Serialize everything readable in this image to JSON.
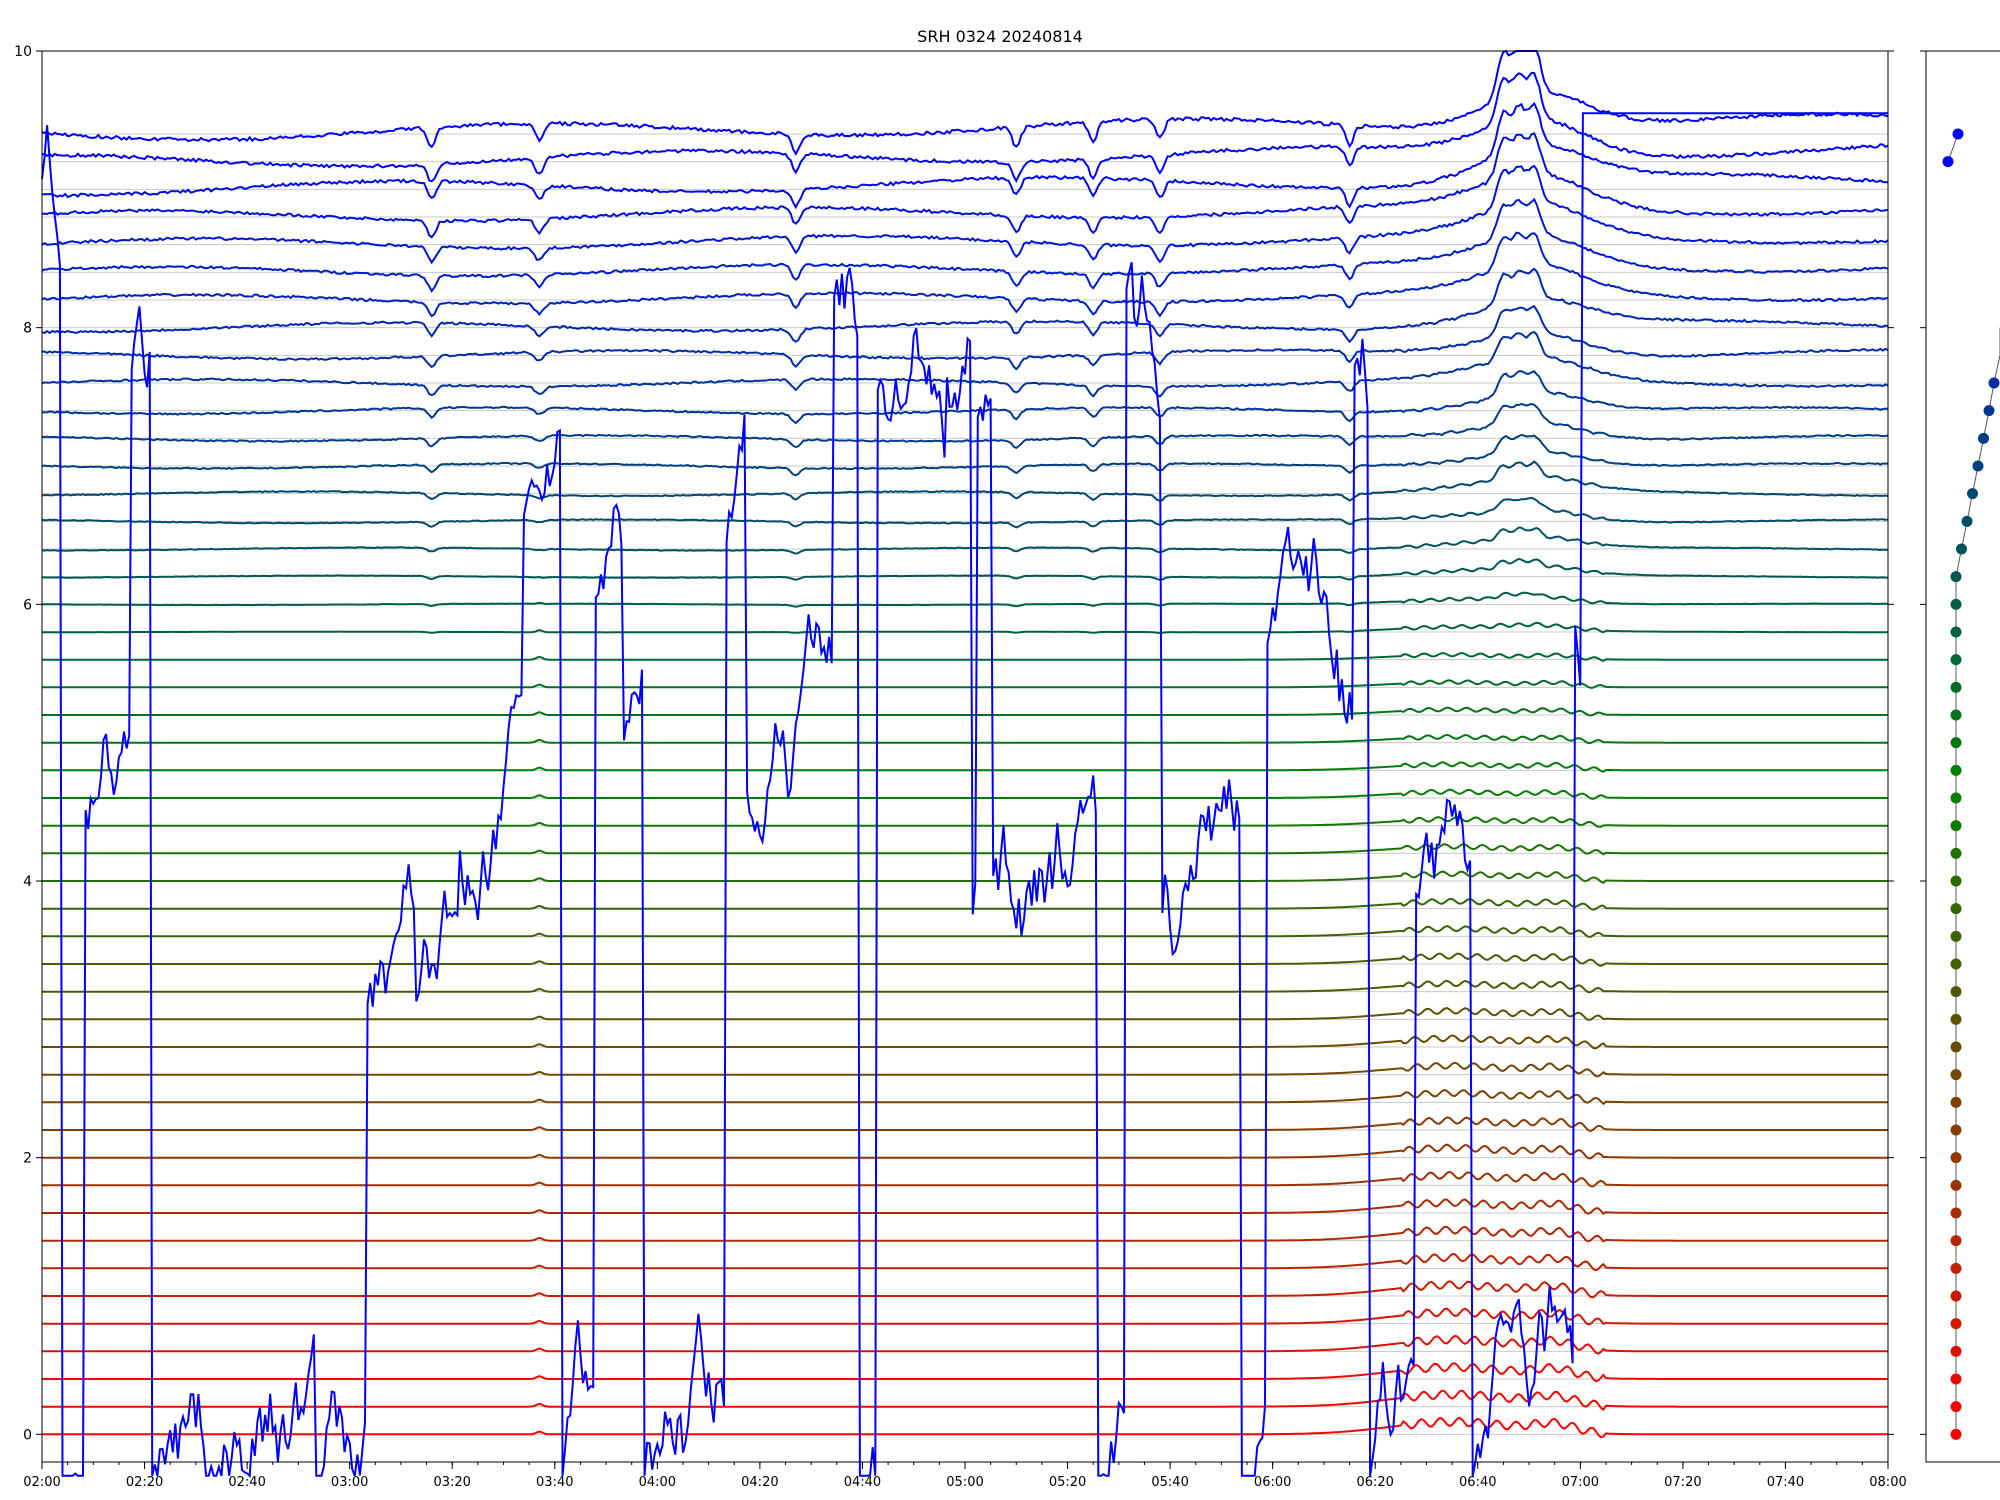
{
  "chart_data": {
    "type": "line",
    "title": "SRH 0324 20240814",
    "xlabel": "",
    "ylabel": "",
    "xlim": [
      "02:00",
      "08:00"
    ],
    "ylim": [
      -0.2,
      10
    ],
    "x_ticks": [
      "02:00",
      "02:20",
      "02:40",
      "03:00",
      "03:20",
      "03:40",
      "04:00",
      "04:20",
      "04:40",
      "05:00",
      "05:20",
      "05:40",
      "06:00",
      "06:20",
      "06:40",
      "07:00",
      "07:20",
      "07:40",
      "08:00"
    ],
    "y_ticks": [
      "0",
      "2",
      "4",
      "6",
      "8",
      "10"
    ],
    "grid": "horizontal lines at each channel baseline",
    "legend": "none",
    "n_channels": 48,
    "baseline_step": 0.2,
    "color_gradient": [
      "#ff0000",
      "#008000",
      "#0000ff"
    ],
    "features": {
      "burst_start": "06:20",
      "oscillation_peaks": [
        "06:45",
        "06:48",
        "06:51"
      ],
      "dips": [
        "03:16",
        "03:37",
        "04:27",
        "05:10",
        "05:25",
        "05:38",
        "06:15"
      ]
    }
  },
  "side_panel": {
    "n_dots": 48,
    "color_gradient": [
      "#ff0000",
      "#008000",
      "#0000ff"
    ]
  }
}
